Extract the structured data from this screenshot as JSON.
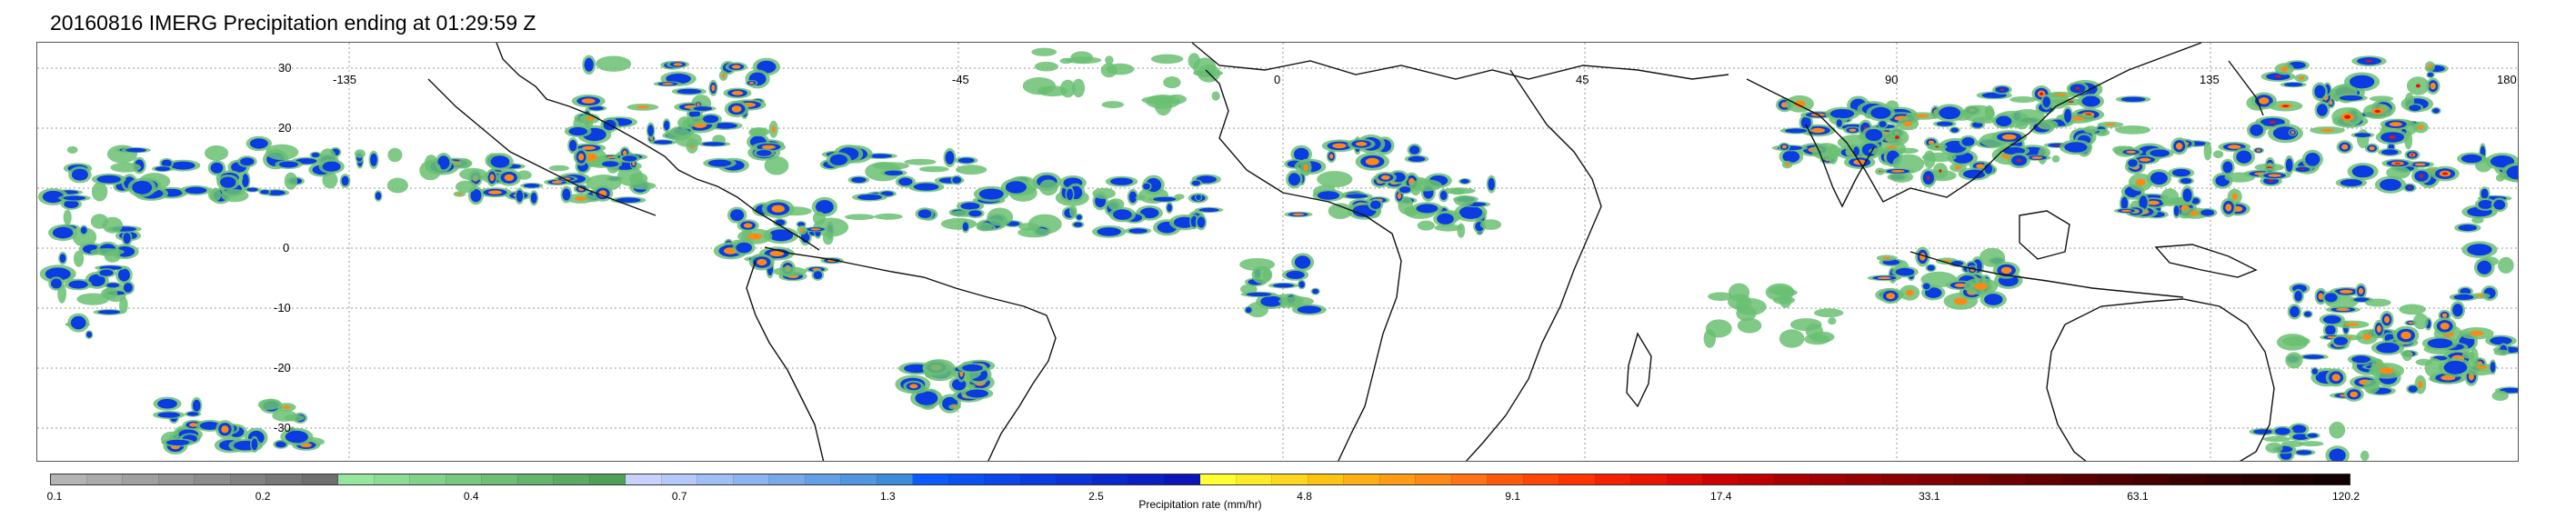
{
  "title": "20160816 IMERG Precipitation ending at 01:29:59 Z",
  "map": {
    "lon_labels": [
      "-135",
      "-45",
      "0",
      "45",
      "90",
      "135",
      "180"
    ],
    "lat_labels": [
      "30",
      "20",
      "0",
      "-10",
      "-20",
      "-30"
    ],
    "gridlines": "dotted",
    "extent": {
      "lon": [
        -180,
        180
      ],
      "lat": [
        -37,
        37
      ]
    },
    "projection": "equirectangular"
  },
  "colorbar": {
    "label": "Precipitation rate (mm/hr)",
    "tick_labels": [
      "0.1",
      "0.2",
      "0.4",
      "0.7",
      "1.3",
      "2.5",
      "4.8",
      "9.1",
      "17.4",
      "33.1",
      "63.1",
      "120.2"
    ],
    "colors": [
      "#b4b4b4",
      "#aaaaaa",
      "#a0a0a0",
      "#969696",
      "#8c8c8c",
      "#828282",
      "#787878",
      "#6e6e6e",
      "#96e6a0",
      "#8cdc96",
      "#82d28c",
      "#78c882",
      "#6ebe78",
      "#64b46e",
      "#5aaa64",
      "#50a05a",
      "#c8d2ff",
      "#b4c8fa",
      "#a0bef5",
      "#8cb4f0",
      "#78aaeb",
      "#64a0e6",
      "#5096e1",
      "#3c8cdc",
      "#0a5aff",
      "#0a50f5",
      "#0a46eb",
      "#0a3ce1",
      "#0a32d7",
      "#0a28cd",
      "#0a1ec3",
      "#0a14b9",
      "#ffff32",
      "#ffeb28",
      "#ffd71e",
      "#ffc314",
      "#ffaf14",
      "#ff9b14",
      "#ff8714",
      "#ff7314",
      "#ff5a0a",
      "#ff4605",
      "#ff3200",
      "#f51e00",
      "#eb1400",
      "#dc0a00",
      "#cd0000",
      "#be0000",
      "#aa0000",
      "#a00000",
      "#960000",
      "#8c0000",
      "#820000",
      "#780000",
      "#6e0000",
      "#640000",
      "#5a0000",
      "#500000",
      "#460000",
      "#3c0000",
      "#320000",
      "#280000",
      "#1e0000",
      "#140000"
    ]
  },
  "legend_palette_groups": {
    "gray": "#999999",
    "green": "#6abf72",
    "lightblue": "#8fb7f0",
    "blue": "#0a3ce1",
    "yellow": "#ffd71e",
    "orange": "#ff8714",
    "red": "#eb1400",
    "darkred": "#5a0000"
  }
}
